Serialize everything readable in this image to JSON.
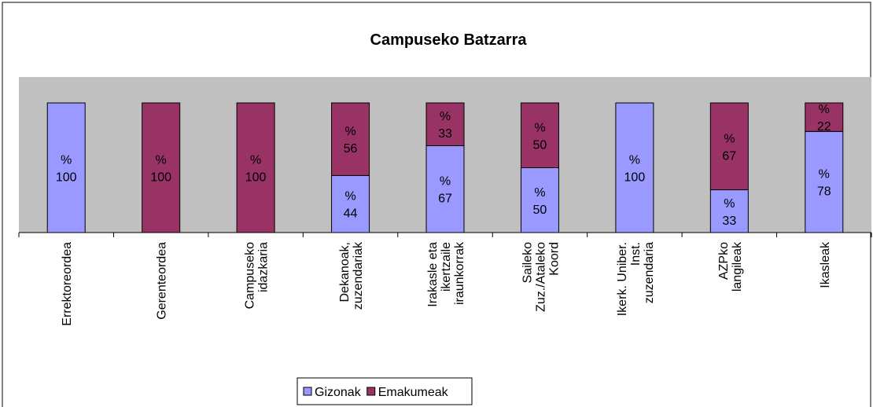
{
  "chart_data": {
    "type": "stacked_bar",
    "title": "Campuseko Batzarra",
    "categories": [
      "Errektoreordea",
      "Gerenteordea",
      "Campuseko\nidazkaria",
      "Dekanoak,\nzuzendariak",
      "Irakasle eta\nikertzaile\niraunkorrak",
      "Saileko\nZuz./Ataleko\nKoord",
      "Ikerk. Uniber.\nInst.\nzuzendaria",
      "AZPko\nlangileak",
      "Ikasleak"
    ],
    "series": [
      {
        "name": "Gizonak",
        "color": "#9999ff",
        "values": [
          100,
          0,
          0,
          44,
          67,
          50,
          100,
          33,
          78
        ],
        "value_labels": [
          "%\n100",
          null,
          null,
          "%\n44",
          "%\n67",
          "%\n50",
          "%\n100",
          "%\n33",
          "%\n78"
        ]
      },
      {
        "name": "Emakumeak",
        "color": "#993366",
        "values": [
          0,
          100,
          100,
          56,
          33,
          50,
          0,
          67,
          22
        ],
        "value_labels": [
          null,
          "%\n100",
          "%\n100",
          "%\n56",
          "%\n33",
          "%\n50",
          null,
          "%\n67",
          "%\n22"
        ]
      }
    ],
    "ylim": [
      0,
      120
    ],
    "plot_background": "#c0c0c0",
    "legend": "bottom"
  }
}
